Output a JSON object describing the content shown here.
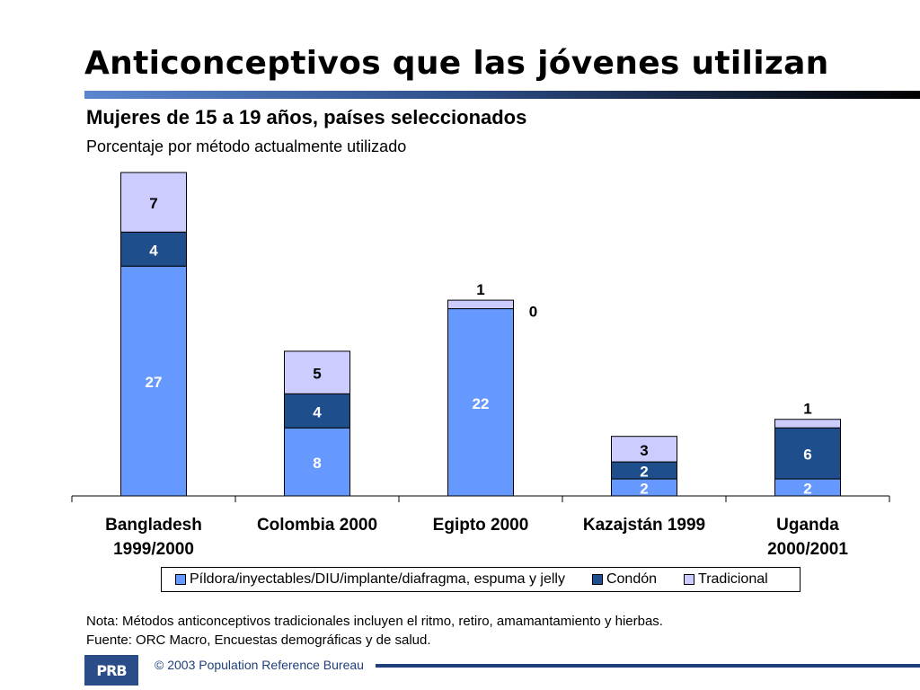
{
  "slide": {
    "title": "Anticonceptivos que las jóvenes utilizan",
    "subtitle": "Mujeres de 15 a 19 años, países seleccionados",
    "description": "Porcentaje por método actualmente utilizado"
  },
  "colors": {
    "pill": "#6699ff",
    "condom": "#1f4e8c",
    "traditional": "#ccccff"
  },
  "chart_data": {
    "type": "bar",
    "stacked": true,
    "categories": [
      [
        "Bangladesh",
        "1999/2000"
      ],
      [
        "Colombia 2000"
      ],
      [
        "Egipto 2000"
      ],
      [
        "Kazajstán 1999"
      ],
      [
        "Uganda",
        "2000/2001"
      ]
    ],
    "series": [
      {
        "name": "Píldora/inyectables/DIU/implante/diafragma, espuma y jelly",
        "values": [
          27,
          8,
          22,
          2,
          2
        ],
        "labels": [
          "27",
          "8",
          "22",
          "2",
          "2"
        ],
        "color": "#6699ff"
      },
      {
        "name": "Condón",
        "values": [
          4,
          4,
          0,
          2,
          6
        ],
        "labels": [
          "4",
          "4",
          "0",
          "2",
          "6"
        ],
        "color": "#1f4e8c"
      },
      {
        "name": "Tradicional",
        "values": [
          7,
          5,
          1,
          3,
          1
        ],
        "labels": [
          "7",
          "5",
          "1",
          "3",
          "1"
        ],
        "color": "#ccccff"
      }
    ],
    "ylim": [
      0,
      38
    ],
    "legend_position": "bottom",
    "grid": false
  },
  "notes": {
    "line1": "Nota: Métodos anticonceptivos tradicionales incluyen el ritmo, retiro, amamantamiento y hierbas.",
    "line2": "Fuente: ORC Macro, Encuestas demográficas y de salud."
  },
  "footer": {
    "logo_text": "PRB",
    "copyright": "© 2003 Population Reference Bureau"
  }
}
